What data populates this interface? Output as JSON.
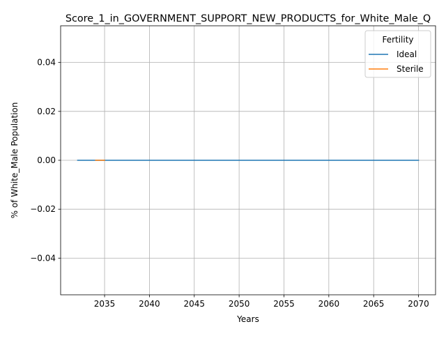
{
  "chart_data": {
    "type": "line",
    "title": "Score_1_in_GOVERNMENT_SUPPORT_NEW_PRODUCTS_for_White_Male_Q",
    "xlabel": "Years",
    "ylabel": "% of White_Male Population",
    "xlim": [
      2030.1,
      2071.9
    ],
    "ylim": [
      -0.055,
      0.055
    ],
    "x_ticks": [
      2035,
      2040,
      2045,
      2050,
      2055,
      2060,
      2065,
      2070
    ],
    "x_tick_labels": [
      "2035",
      "2040",
      "2045",
      "2050",
      "2055",
      "2060",
      "2065",
      "2070"
    ],
    "y_ticks": [
      -0.04,
      -0.02,
      0.0,
      0.02,
      0.04
    ],
    "y_tick_labels": [
      "−0.04",
      "−0.02",
      "0.00",
      "0.02",
      "0.04"
    ],
    "grid": true,
    "legend": {
      "title": "Fertility",
      "placement": "top-right"
    },
    "series": [
      {
        "name": "Ideal",
        "color": "#1f77b4",
        "x": [
          2032,
          2070
        ],
        "y": [
          0,
          0
        ]
      },
      {
        "name": "Sterile",
        "color": "#ff7f0e",
        "x": [
          2034,
          2035
        ],
        "y": [
          0,
          0
        ]
      }
    ]
  }
}
